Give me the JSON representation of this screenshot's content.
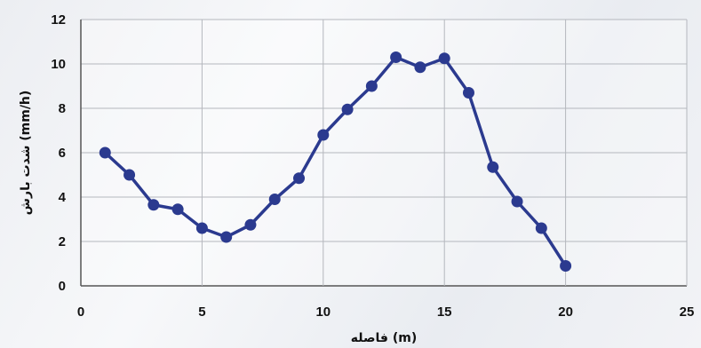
{
  "chart_data": {
    "type": "line",
    "xlabel": "فاصله (m)",
    "ylabel": "شدت بارش (mm/h)",
    "xlim": [
      0,
      25
    ],
    "ylim": [
      0,
      12
    ],
    "x_ticks": [
      0,
      5,
      10,
      15,
      20,
      25
    ],
    "y_ticks": [
      0,
      2,
      4,
      6,
      8,
      10,
      12
    ],
    "grid": true,
    "legend": "none",
    "series": [
      {
        "color": "#2b3a8f",
        "x": [
          1,
          2,
          3,
          4,
          5,
          6,
          7,
          8,
          9,
          10,
          11,
          12,
          13,
          14,
          15,
          16,
          17,
          18,
          19,
          20
        ],
        "y": [
          6.0,
          5.0,
          3.65,
          3.45,
          2.6,
          2.2,
          2.75,
          3.9,
          4.85,
          6.8,
          7.95,
          9.0,
          10.3,
          9.85,
          10.25,
          8.7,
          5.35,
          3.8,
          2.6,
          0.9
        ]
      }
    ]
  }
}
